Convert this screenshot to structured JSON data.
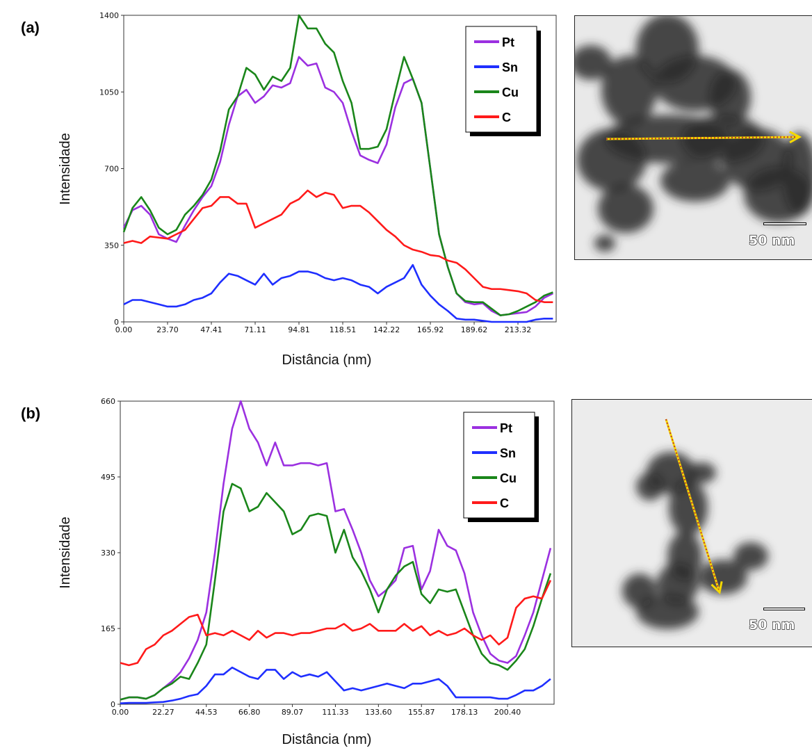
{
  "chart_data": [
    {
      "type": "line",
      "panel_label": "(a)",
      "x_label": "Distância (nm)",
      "y_label": "Intensidade",
      "scale_bar_label": "50 nm",
      "legend": "upper right",
      "grid": false,
      "xlim": [
        0,
        234
      ],
      "ylim": [
        0,
        1400
      ],
      "xticks": [
        {
          "value": 0,
          "label": "0.00"
        },
        {
          "value": 23.7,
          "label": "23.70"
        },
        47.41,
        71.11,
        94.81,
        118.51,
        142.22,
        165.92,
        189.62,
        213.32
      ],
      "yticks": [
        0,
        350,
        700,
        1050,
        1400
      ],
      "x": [
        0,
        4.74,
        9.48,
        14.22,
        18.96,
        23.7,
        28.44,
        33.18,
        37.92,
        42.66,
        47.4,
        52.14,
        56.88,
        61.62,
        66.36,
        71.1,
        75.84,
        80.58,
        85.32,
        90.06,
        94.8,
        99.54,
        104.28,
        109.02,
        113.76,
        118.5,
        123.24,
        127.98,
        132.72,
        137.46,
        142.2,
        146.94,
        151.68,
        156.42,
        161.16,
        165.9,
        170.64,
        175.38,
        180.12,
        184.86,
        189.6,
        194.34,
        199.08,
        203.82,
        208.56,
        213.3,
        218.04,
        222.78,
        227.52,
        232.26
      ],
      "series": [
        {
          "name": "Pt",
          "color": "#9b30e0",
          "values": [
            430,
            510,
            530,
            490,
            400,
            380,
            365,
            440,
            510,
            570,
            620,
            730,
            900,
            1030,
            1060,
            1000,
            1030,
            1080,
            1070,
            1090,
            1210,
            1170,
            1180,
            1070,
            1050,
            1000,
            870,
            760,
            740,
            725,
            810,
            980,
            1090,
            1110,
            1000,
            700,
            400,
            250,
            130,
            90,
            80,
            85,
            50,
            30,
            35,
            40,
            45,
            70,
            110,
            130
          ]
        },
        {
          "name": "Sn",
          "color": "#1f2fff",
          "values": [
            80,
            100,
            100,
            90,
            80,
            70,
            70,
            80,
            100,
            110,
            130,
            180,
            220,
            210,
            190,
            170,
            220,
            170,
            200,
            210,
            230,
            230,
            220,
            200,
            190,
            200,
            190,
            170,
            160,
            130,
            160,
            180,
            200,
            260,
            170,
            120,
            80,
            50,
            15,
            10,
            10,
            5,
            0,
            0,
            0,
            0,
            0,
            10,
            15,
            15
          ]
        },
        {
          "name": "Cu",
          "color": "#1a861a",
          "values": [
            410,
            520,
            570,
            510,
            430,
            400,
            420,
            490,
            530,
            580,
            650,
            780,
            970,
            1030,
            1160,
            1130,
            1060,
            1120,
            1100,
            1160,
            1400,
            1340,
            1340,
            1270,
            1230,
            1100,
            1000,
            790,
            790,
            800,
            880,
            1050,
            1210,
            1110,
            1000,
            700,
            400,
            250,
            130,
            95,
            90,
            90,
            60,
            30,
            35,
            50,
            70,
            90,
            120,
            135
          ]
        },
        {
          "name": "C",
          "color": "#ff1a1a",
          "values": [
            360,
            370,
            360,
            390,
            385,
            380,
            400,
            420,
            470,
            520,
            530,
            570,
            570,
            540,
            540,
            430,
            450,
            470,
            490,
            540,
            560,
            600,
            570,
            590,
            580,
            520,
            530,
            530,
            500,
            460,
            420,
            390,
            350,
            330,
            320,
            305,
            300,
            280,
            270,
            240,
            200,
            160,
            150,
            150,
            145,
            140,
            130,
            100,
            90,
            90
          ]
        }
      ]
    },
    {
      "type": "line",
      "panel_label": "(b)",
      "x_label": "Distância (nm)",
      "y_label": "Intensidade",
      "scale_bar_label": "50 nm",
      "legend": "upper right",
      "grid": false,
      "xlim": [
        0,
        224.5
      ],
      "ylim": [
        0,
        660
      ],
      "xticks": [
        {
          "value": 0,
          "label": "0.00"
        },
        22.27,
        44.53,
        {
          "value": 66.8,
          "label": "66.80"
        },
        89.07,
        111.33,
        {
          "value": 133.6,
          "label": "133.60"
        },
        155.87,
        178.13,
        {
          "value": 200.4,
          "label": "200.40"
        }
      ],
      "yticks": [
        0,
        165,
        330,
        495,
        660
      ],
      "x": [
        0,
        4.45,
        8.91,
        13.36,
        17.82,
        22.27,
        26.72,
        31.18,
        35.63,
        40.08,
        44.53,
        48.99,
        53.44,
        57.9,
        62.35,
        66.8,
        71.25,
        75.71,
        80.16,
        84.61,
        89.07,
        93.52,
        97.97,
        102.43,
        106.88,
        111.33,
        115.79,
        120.24,
        124.69,
        129.15,
        133.6,
        138.05,
        142.51,
        146.96,
        151.41,
        155.87,
        160.32,
        164.77,
        169.23,
        173.68,
        178.13,
        182.59,
        187.04,
        191.49,
        195.95,
        200.4,
        204.85,
        209.31,
        213.76,
        218.21,
        222.67
      ],
      "series": [
        {
          "name": "Pt",
          "color": "#9b30e0",
          "values": [
            10,
            15,
            15,
            12,
            20,
            35,
            50,
            70,
            100,
            140,
            200,
            330,
            480,
            600,
            660,
            600,
            570,
            520,
            570,
            520,
            520,
            525,
            525,
            520,
            525,
            420,
            425,
            380,
            330,
            270,
            235,
            250,
            270,
            340,
            345,
            250,
            290,
            380,
            345,
            335,
            285,
            200,
            150,
            110,
            95,
            90,
            105,
            150,
            200,
            270,
            340
          ]
        },
        {
          "name": "Sn",
          "color": "#1f2fff",
          "values": [
            2,
            3,
            3,
            3,
            4,
            5,
            8,
            12,
            18,
            22,
            40,
            65,
            65,
            80,
            70,
            60,
            55,
            75,
            75,
            55,
            70,
            60,
            65,
            60,
            70,
            50,
            30,
            35,
            30,
            35,
            40,
            45,
            40,
            35,
            45,
            45,
            50,
            55,
            40,
            15,
            15,
            15,
            15,
            15,
            12,
            12,
            20,
            30,
            30,
            40,
            55
          ]
        },
        {
          "name": "Cu",
          "color": "#1a861a",
          "values": [
            10,
            15,
            15,
            12,
            20,
            35,
            45,
            60,
            55,
            90,
            130,
            270,
            420,
            480,
            470,
            420,
            430,
            460,
            440,
            420,
            370,
            380,
            410,
            415,
            410,
            330,
            380,
            320,
            290,
            250,
            200,
            250,
            280,
            300,
            310,
            240,
            220,
            250,
            245,
            250,
            200,
            150,
            110,
            90,
            85,
            75,
            95,
            120,
            170,
            230,
            285
          ]
        },
        {
          "name": "C",
          "color": "#ff1a1a",
          "values": [
            90,
            85,
            90,
            120,
            130,
            150,
            160,
            175,
            190,
            195,
            150,
            155,
            150,
            160,
            150,
            140,
            160,
            145,
            155,
            155,
            150,
            155,
            155,
            160,
            165,
            165,
            175,
            160,
            165,
            175,
            160,
            160,
            160,
            175,
            160,
            170,
            150,
            160,
            150,
            155,
            165,
            150,
            140,
            150,
            130,
            145,
            210,
            230,
            235,
            230,
            270
          ]
        }
      ]
    }
  ]
}
